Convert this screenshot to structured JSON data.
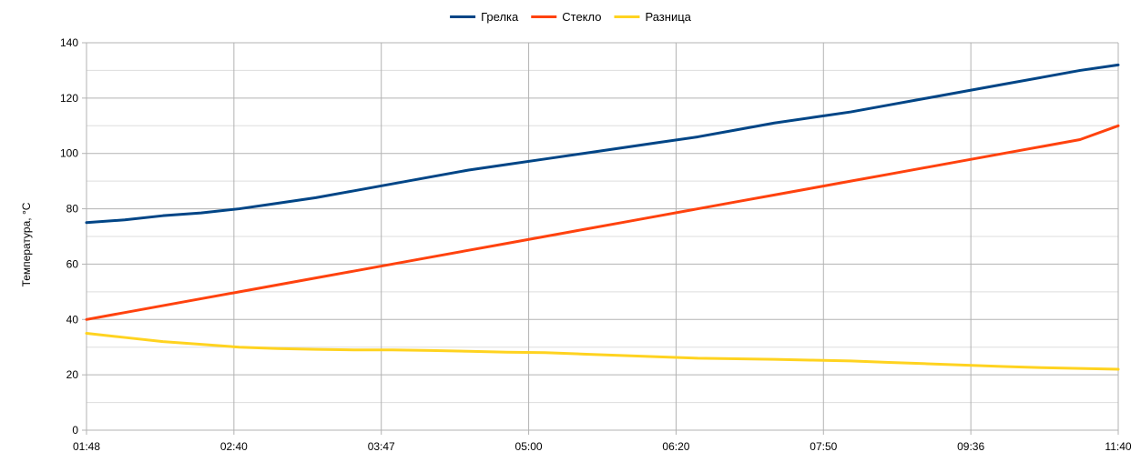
{
  "chart_data": {
    "type": "line",
    "title": "",
    "xlabel": "",
    "ylabel": "Температура, °C",
    "ylim": [
      0,
      140
    ],
    "y_ticks": [
      0,
      20,
      40,
      60,
      80,
      100,
      120,
      140
    ],
    "x_tick_labels": [
      "01:48",
      "02:40",
      "03:47",
      "05:00",
      "06:20",
      "07:50",
      "09:36",
      "11:40"
    ],
    "grid": true,
    "legend_position": "top-center",
    "series": [
      {
        "name": "Грелка",
        "color": "#004586",
        "values": [
          75,
          76,
          77.5,
          78.5,
          80,
          82,
          84,
          86.5,
          89,
          91.5,
          94,
          96,
          98,
          100,
          102,
          104,
          106,
          108.5,
          111,
          113,
          115,
          117.5,
          120,
          122.5,
          125,
          127.5,
          130,
          132
        ]
      },
      {
        "name": "Стекло",
        "color": "#ff420e",
        "values": [
          40,
          42.5,
          45,
          47.5,
          50,
          52.5,
          55,
          57.5,
          60,
          62.5,
          65,
          67.5,
          70,
          72.5,
          75,
          77.5,
          80,
          82.5,
          85,
          87.5,
          90,
          92.5,
          95,
          97.5,
          100,
          102.5,
          105,
          110
        ]
      },
      {
        "name": "Разница",
        "color": "#ffd320",
        "values": [
          35,
          33.5,
          32,
          31,
          30,
          29.5,
          29.2,
          29,
          29,
          28.8,
          28.5,
          28.2,
          28,
          27.5,
          27,
          26.5,
          26,
          25.8,
          25.6,
          25.3,
          25,
          24.5,
          24,
          23.5,
          23,
          22.6,
          22.3,
          22
        ]
      }
    ]
  }
}
